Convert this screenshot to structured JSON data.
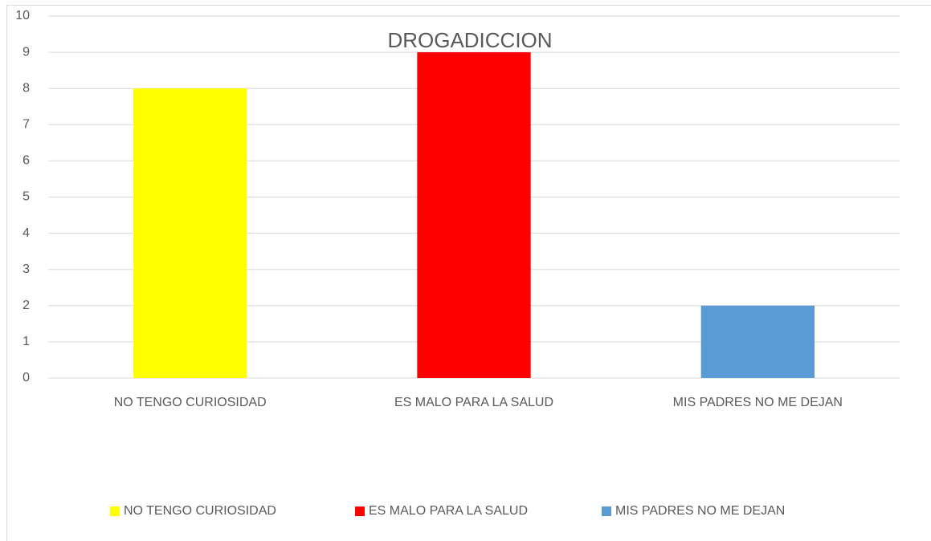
{
  "chart_data": {
    "type": "bar",
    "title": "DROGADICCION",
    "categories": [
      "NO TENGO CURIOSIDAD",
      "ES MALO PARA LA SALUD",
      "MIS PADRES NO ME DEJAN"
    ],
    "values": [
      8,
      9,
      2
    ],
    "colors": [
      "#ffff00",
      "#ff0000",
      "#5b9bd5"
    ],
    "ylim": [
      0,
      10
    ],
    "yticks": [
      0,
      1,
      2,
      3,
      4,
      5,
      6,
      7,
      8,
      9,
      10
    ],
    "grid": true,
    "legend": "bottom"
  }
}
